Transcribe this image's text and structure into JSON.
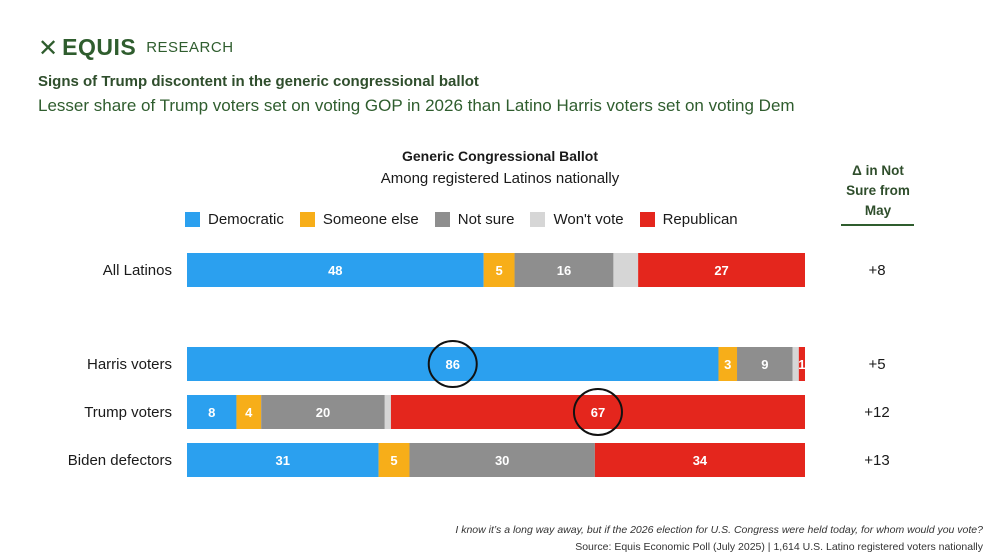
{
  "brand": {
    "mark": "✕",
    "name": "EQUIS",
    "sub": "RESEARCH"
  },
  "title": "Signs of Trump discontent in the generic congressional ballot",
  "subtitle": "Lesser share of Trump voters set on voting GOP in 2026 than Latino Harris voters set on voting Dem",
  "delta_header": [
    "Δ in Not",
    "Sure from",
    "May"
  ],
  "footnote": "I know it’s a long way away, but if the 2026 election for U.S. Congress were held today, for whom would you vote?",
  "source": "Source: Equis Economic Poll (July 2025) | 1,614 U.S. Latino registered voters nationally",
  "chart_data": {
    "type": "bar",
    "orientation": "horizontal-stacked-100",
    "title": "Generic Congressional Ballot",
    "subtitle": "Among registered Latinos nationally",
    "series": [
      {
        "name": "Democratic",
        "color": "#2ba0ef"
      },
      {
        "name": "Someone else",
        "color": "#f7ae19"
      },
      {
        "name": "Not sure",
        "color": "#8e8e8e"
      },
      {
        "name": "Won't vote",
        "color": "#d6d6d6"
      },
      {
        "name": "Republican",
        "color": "#e4261d"
      }
    ],
    "rows": [
      {
        "label": "All Latinos",
        "values": [
          48,
          5,
          16,
          4,
          27
        ],
        "labels": [
          "48",
          "5",
          "16",
          "",
          "27"
        ],
        "delta": "+8",
        "circle": null
      },
      {
        "label": "Harris voters",
        "values": [
          86,
          3,
          9,
          1,
          1
        ],
        "labels": [
          "86",
          "3",
          "9",
          "",
          "1"
        ],
        "delta": "+5",
        "circle": 0
      },
      {
        "label": "Trump voters",
        "values": [
          8,
          4,
          20,
          1,
          67
        ],
        "labels": [
          "8",
          "4",
          "20",
          "",
          "67"
        ],
        "delta": "+12",
        "circle": 4
      },
      {
        "label": "Biden defectors",
        "values": [
          31,
          5,
          30,
          0,
          34
        ],
        "labels": [
          "31",
          "5",
          "30",
          "",
          "34"
        ],
        "delta": "+13",
        "circle": null
      }
    ]
  }
}
